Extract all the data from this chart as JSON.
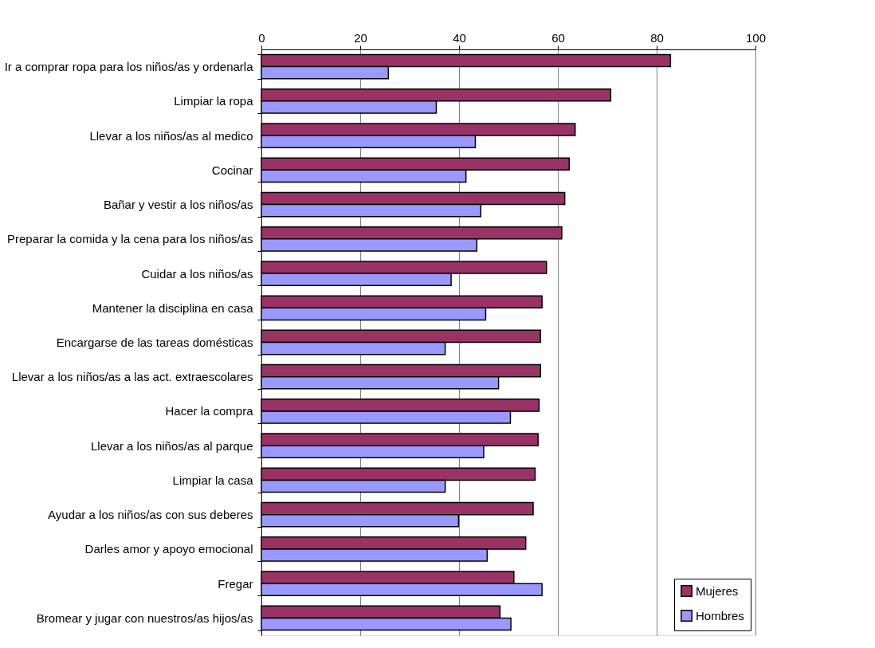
{
  "chart_data": {
    "type": "bar",
    "orientation": "horizontal",
    "categories": [
      "Ir a comprar ropa para los niños/as y ordenarla",
      "Limpiar la ropa",
      "Llevar a los niños/as al medico",
      "Cocinar",
      "Bañar y vestir a los niños/as",
      "Preparar la comida y la cena para los niños/as",
      "Cuidar a los niños/as",
      "Mantener la disciplina en casa",
      "Encargarse de las tareas domésticas",
      "Llevar a los niños/as a las act. extraescolares",
      "Hacer la compra",
      "Llevar a los niños/as al parque",
      "Limpiar la casa",
      "Ayudar a los niños/as con sus deberes",
      "Darles amor y apoyo emocional",
      "Fregar",
      "Bromear y jugar con nuestros/as hijos/as"
    ],
    "series": [
      {
        "name": "Mujeres",
        "color": "#993366",
        "values": [
          82.8,
          70.7,
          63.5,
          62.3,
          61.4,
          60.8,
          57.7,
          56.8,
          56.5,
          56.5,
          56.2,
          56.0,
          55.4,
          55.0,
          53.5,
          51.1,
          48.3
        ]
      },
      {
        "name": "Hombres",
        "color": "#9999ff",
        "values": [
          25.7,
          35.4,
          43.3,
          41.4,
          44.4,
          43.6,
          38.4,
          45.4,
          37.2,
          48.0,
          50.4,
          45.0,
          37.2,
          39.9,
          45.7,
          56.8,
          50.5
        ]
      }
    ],
    "xlim": [
      0,
      100
    ],
    "xticks": [
      0,
      20,
      40,
      60,
      80,
      100
    ],
    "grid": "x",
    "legend": "bottom right"
  }
}
